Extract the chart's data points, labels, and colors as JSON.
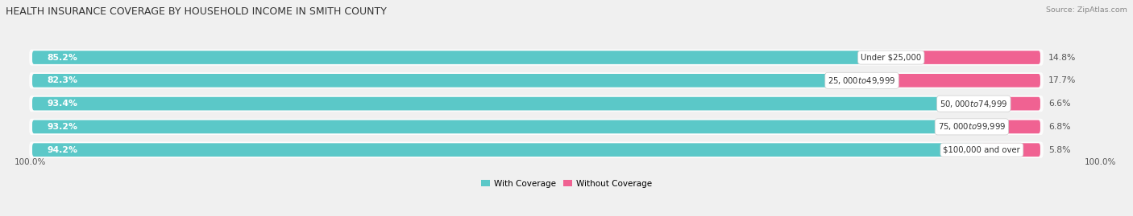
{
  "title": "HEALTH INSURANCE COVERAGE BY HOUSEHOLD INCOME IN SMITH COUNTY",
  "source": "Source: ZipAtlas.com",
  "categories": [
    "Under $25,000",
    "$25,000 to $49,999",
    "$50,000 to $74,999",
    "$75,000 to $99,999",
    "$100,000 and over"
  ],
  "with_coverage": [
    85.2,
    82.3,
    93.4,
    93.2,
    94.2
  ],
  "without_coverage": [
    14.8,
    17.7,
    6.6,
    6.8,
    5.8
  ],
  "color_with": "#5BC8C8",
  "color_without": "#F06292",
  "bar_height": 0.58,
  "background_color": "#f0f0f0",
  "bar_bg_color": "#e0e0e0",
  "title_fontsize": 9.0,
  "label_fontsize": 7.8,
  "source_fontsize": 6.8,
  "legend_fontsize": 7.5,
  "axis_label_fontsize": 7.5,
  "total_width": 100
}
